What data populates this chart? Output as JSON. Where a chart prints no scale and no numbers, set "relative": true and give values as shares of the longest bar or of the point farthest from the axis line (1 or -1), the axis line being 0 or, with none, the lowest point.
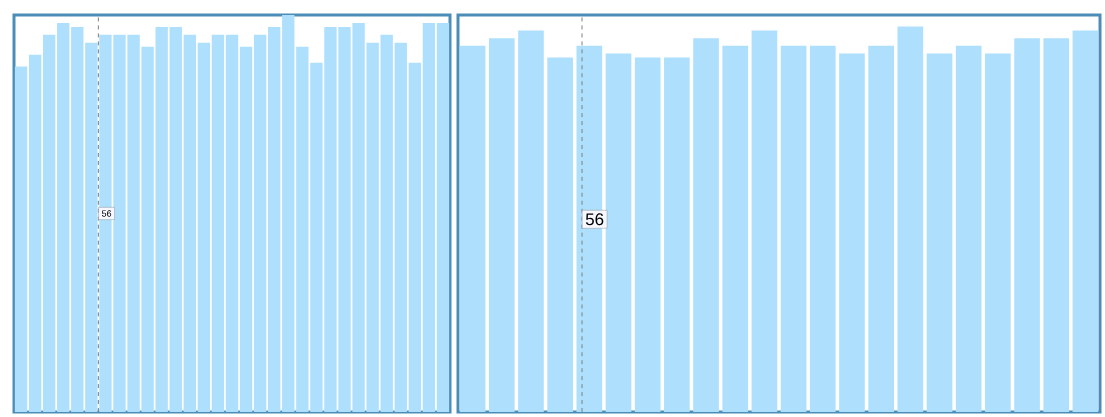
{
  "chart_data": [
    {
      "type": "bar",
      "relative": true,
      "color": "#aee0fd",
      "categories": [
        null,
        null,
        null,
        null,
        null,
        null,
        null,
        null,
        null,
        null,
        null,
        null,
        null,
        null,
        null,
        null,
        null,
        null,
        null,
        null,
        null,
        null,
        null,
        null,
        null,
        null,
        null,
        null,
        null,
        null,
        null
      ],
      "values": [
        0.87,
        0.9,
        0.95,
        0.98,
        0.97,
        0.93,
        0.95,
        0.95,
        0.95,
        0.92,
        0.97,
        0.97,
        0.95,
        0.93,
        0.95,
        0.95,
        0.92,
        0.95,
        0.97,
        1,
        0.92,
        0.88,
        0.97,
        0.97,
        0.98,
        0.93,
        0.95,
        0.93,
        0.88,
        0.98,
        0.98
      ],
      "annotations": [
        "56"
      ]
    },
    {
      "type": "bar",
      "relative": true,
      "color": "#aee0fd",
      "categories": [
        null,
        null,
        null,
        null,
        null,
        null,
        null,
        null,
        null,
        null,
        null,
        null,
        null,
        null,
        null,
        null,
        null,
        null,
        null,
        null,
        null,
        null
      ],
      "values": [
        0.95,
        0.97,
        0.99,
        0.92,
        0.95,
        0.93,
        0.92,
        0.92,
        0.97,
        0.95,
        0.99,
        0.95,
        0.95,
        0.93,
        0.95,
        1,
        0.93,
        0.95,
        0.93,
        0.97,
        0.97,
        0.99
      ],
      "annotations": [
        "56"
      ]
    }
  ]
}
